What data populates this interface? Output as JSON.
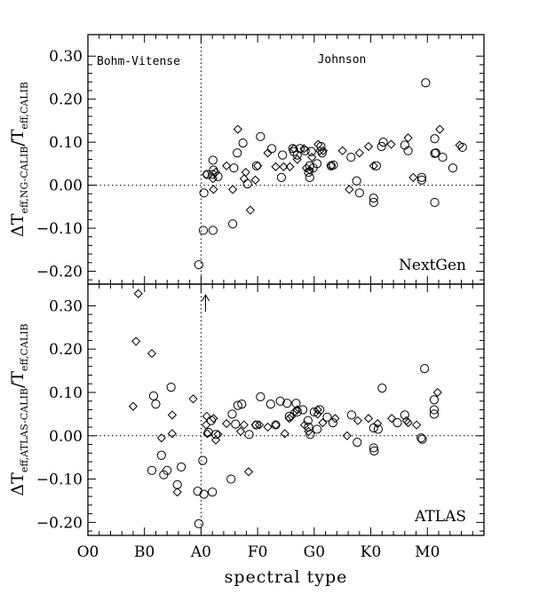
{
  "chart_data": {
    "type": "scatter",
    "xlabel": "spectral type",
    "x_tick_labels": [
      "O0",
      "B0",
      "A0",
      "F0",
      "G0",
      "K0",
      "M0"
    ],
    "x_tick_values": [
      0,
      10,
      20,
      30,
      40,
      50,
      60
    ],
    "xlim": [
      0,
      70
    ],
    "x_unit_note": "x = spectral class index: O0=0, B0=10, A0=20, F0=30, G0=40, K0=50, M0=60",
    "vertical_reference_x": 20,
    "horizontal_reference_y": 0,
    "region_labels": {
      "left": "Bohm-Vitense",
      "right": "Johnson"
    },
    "panels": [
      {
        "id": "nextgen",
        "panel_label": "NextGen",
        "ylabel_main": "ΔT",
        "ylabel_sub1": "eff,NG-CALIB",
        "ylabel_mid": "/T",
        "ylabel_sub2": "eff,CALIB",
        "ylim": [
          -0.23,
          0.35
        ],
        "y_ticks": [
          -0.2,
          -0.1,
          0.0,
          0.1,
          0.2,
          0.3
        ],
        "y_tick_labels": [
          "−0.20",
          "−0.10",
          "0.00",
          "0.10",
          "0.20",
          "0.30"
        ],
        "series": [
          {
            "marker": "circle",
            "points": [
              [
                19.6,
                -0.185
              ],
              [
                20.4,
                -0.105
              ],
              [
                20.5,
                -0.018
              ],
              [
                21.1,
                0.025
              ],
              [
                22.0,
                0.025
              ],
              [
                22.1,
                0.058
              ],
              [
                22.2,
                0.035
              ],
              [
                22.1,
                -0.105
              ],
              [
                23.0,
                0.02
              ],
              [
                25.6,
                -0.09
              ],
              [
                25.8,
                0.04
              ],
              [
                26.4,
                0.075
              ],
              [
                27.4,
                0.098
              ],
              [
                28.2,
                0.003
              ],
              [
                29.8,
                0.045
              ],
              [
                30.5,
                0.113
              ],
              [
                32.5,
                0.085
              ],
              [
                34.2,
                0.018
              ],
              [
                34.4,
                0.07
              ],
              [
                36.2,
                0.085
              ],
              [
                36.4,
                0.078
              ],
              [
                37.0,
                0.07
              ],
              [
                37.5,
                0.085
              ],
              [
                38.4,
                0.08
              ],
              [
                39.0,
                0.03
              ],
              [
                39.2,
                0.045
              ],
              [
                39.2,
                0.018
              ],
              [
                39.5,
                0.078
              ],
              [
                39.8,
                0.04
              ],
              [
                40.5,
                0.05
              ],
              [
                41.2,
                0.09
              ],
              [
                41.4,
                0.075
              ],
              [
                43.0,
                0.045
              ],
              [
                43.4,
                0.047
              ],
              [
                46.5,
                0.065
              ],
              [
                47.5,
                0.01
              ],
              [
                48.0,
                -0.018
              ],
              [
                50.5,
                -0.03
              ],
              [
                50.5,
                -0.04
              ],
              [
                51.0,
                0.045
              ],
              [
                51.9,
                0.09
              ],
              [
                52.2,
                0.1
              ],
              [
                56.0,
                0.093
              ],
              [
                56.6,
                0.08
              ],
              [
                59.0,
                0.018
              ],
              [
                59.0,
                0.012
              ],
              [
                59.7,
                0.238
              ],
              [
                61.3,
                0.108
              ],
              [
                61.3,
                0.074
              ],
              [
                61.5,
                0.075
              ],
              [
                61.3,
                -0.04
              ],
              [
                62.7,
                0.065
              ],
              [
                64.5,
                0.04
              ],
              [
                66.2,
                0.088
              ]
            ]
          },
          {
            "marker": "diamond",
            "points": [
              [
                20.9,
                0.025
              ],
              [
                22.1,
                0.015
              ],
              [
                22.2,
                -0.01
              ],
              [
                22.6,
                0.03
              ],
              [
                24.5,
                0.045
              ],
              [
                25.6,
                -0.01
              ],
              [
                26.5,
                0.13
              ],
              [
                27.6,
                0.015
              ],
              [
                27.9,
                0.03
              ],
              [
                28.7,
                -0.058
              ],
              [
                29.6,
                0.012
              ],
              [
                30.0,
                0.045
              ],
              [
                31.8,
                0.075
              ],
              [
                33.2,
                0.043
              ],
              [
                34.6,
                0.043
              ],
              [
                35.7,
                0.043
              ],
              [
                36.4,
                0.085
              ],
              [
                37.0,
                0.06
              ],
              [
                38.2,
                0.085
              ],
              [
                38.6,
                0.04
              ],
              [
                39.2,
                0.035
              ],
              [
                39.6,
                0.065
              ],
              [
                40.7,
                0.095
              ],
              [
                41.0,
                0.08
              ],
              [
                41.6,
                0.08
              ],
              [
                43.0,
                0.045
              ],
              [
                45.0,
                0.08
              ],
              [
                46.2,
                -0.01
              ],
              [
                48.0,
                0.075
              ],
              [
                49.6,
                0.09
              ],
              [
                50.5,
                0.045
              ],
              [
                53.6,
                0.095
              ],
              [
                56.6,
                0.11
              ],
              [
                57.5,
                0.018
              ],
              [
                62.2,
                0.13
              ],
              [
                65.7,
                0.093
              ]
            ]
          }
        ]
      },
      {
        "id": "atlas",
        "panel_label": "ATLAS",
        "ylabel_main": "ΔT",
        "ylabel_sub1": "eff,ATLAS-CALIB",
        "ylabel_mid": "/T",
        "ylabel_sub2": "eff,CALIB",
        "ylim": [
          -0.23,
          0.35
        ],
        "y_ticks": [
          -0.2,
          -0.1,
          0.0,
          0.1,
          0.2,
          0.3
        ],
        "y_tick_labels": [
          "−0.20",
          "−0.10",
          "0.00",
          "0.10",
          "0.20",
          "0.30"
        ],
        "upper_limit_arrow_x": 20.8,
        "series": [
          {
            "marker": "circle",
            "points": [
              [
                11.3,
                -0.08
              ],
              [
                11.6,
                0.092
              ],
              [
                12.0,
                0.073
              ],
              [
                13.0,
                -0.045
              ],
              [
                13.4,
                -0.09
              ],
              [
                14.0,
                -0.08
              ],
              [
                14.7,
                0.112
              ],
              [
                15.8,
                -0.113
              ],
              [
                16.5,
                -0.072
              ],
              [
                19.4,
                -0.128
              ],
              [
                19.6,
                -0.203
              ],
              [
                20.3,
                -0.057
              ],
              [
                20.5,
                -0.135
              ],
              [
                21.3,
                0.008
              ],
              [
                21.8,
                0.035
              ],
              [
                22.0,
                -0.13
              ],
              [
                22.6,
                0.003
              ],
              [
                25.3,
                -0.1
              ],
              [
                25.5,
                0.05
              ],
              [
                26.1,
                0.027
              ],
              [
                26.5,
                0.07
              ],
              [
                27.2,
                0.073
              ],
              [
                28.5,
                0.003
              ],
              [
                29.8,
                0.025
              ],
              [
                30.5,
                0.09
              ],
              [
                32.3,
                0.073
              ],
              [
                33.2,
                0.025
              ],
              [
                34.0,
                0.08
              ],
              [
                35.2,
                0.075
              ],
              [
                35.6,
                0.045
              ],
              [
                36.8,
                0.075
              ],
              [
                37.0,
                0.055
              ],
              [
                38.0,
                0.06
              ],
              [
                38.9,
                0.035
              ],
              [
                39.0,
                0.02
              ],
              [
                39.3,
                0.003
              ],
              [
                40.0,
                0.055
              ],
              [
                40.5,
                0.015
              ],
              [
                41.0,
                0.06
              ],
              [
                42.3,
                0.043
              ],
              [
                43.3,
                0.03
              ],
              [
                46.6,
                0.048
              ],
              [
                47.6,
                -0.015
              ],
              [
                50.5,
                0.018
              ],
              [
                50.5,
                -0.028
              ],
              [
                50.6,
                -0.035
              ],
              [
                51.3,
                0.015
              ],
              [
                52.0,
                0.11
              ],
              [
                54.7,
                0.03
              ],
              [
                56.0,
                0.048
              ],
              [
                58.9,
                -0.005
              ],
              [
                59.1,
                -0.008
              ],
              [
                59.5,
                0.155
              ],
              [
                61.2,
                0.083
              ],
              [
                61.2,
                0.06
              ],
              [
                61.2,
                0.05
              ]
            ]
          },
          {
            "marker": "diamond",
            "points": [
              [
                8.0,
                0.068
              ],
              [
                8.5,
                0.218
              ],
              [
                8.9,
                0.328
              ],
              [
                11.3,
                0.19
              ],
              [
                13.0,
                -0.005
              ],
              [
                14.9,
                0.048
              ],
              [
                14.9,
                0.005
              ],
              [
                15.8,
                -0.13
              ],
              [
                18.6,
                0.085
              ],
              [
                20.9,
                0.025
              ],
              [
                21.0,
                0.045
              ],
              [
                21.1,
                0.005
              ],
              [
                22.2,
                0.04
              ],
              [
                22.6,
                -0.01
              ],
              [
                23.0,
                0.003
              ],
              [
                24.5,
                0.028
              ],
              [
                27.0,
                0.01
              ],
              [
                27.6,
                0.025
              ],
              [
                28.4,
                -0.083
              ],
              [
                29.6,
                0.025
              ],
              [
                30.3,
                0.025
              ],
              [
                31.8,
                0.02
              ],
              [
                33.2,
                0.025
              ],
              [
                34.8,
                0.005
              ],
              [
                35.6,
                0.04
              ],
              [
                36.0,
                0.045
              ],
              [
                36.5,
                0.055
              ],
              [
                37.0,
                0.06
              ],
              [
                38.3,
                0.025
              ],
              [
                39.0,
                0.01
              ],
              [
                40.6,
                0.05
              ],
              [
                40.6,
                0.06
              ],
              [
                41.5,
                0.03
              ],
              [
                43.7,
                0.04
              ],
              [
                45.8,
                0.0
              ],
              [
                47.7,
                0.035
              ],
              [
                49.6,
                0.04
              ],
              [
                51.2,
                0.028
              ],
              [
                53.7,
                0.04
              ],
              [
                56.3,
                0.035
              ],
              [
                56.6,
                0.03
              ],
              [
                58.1,
                0.025
              ],
              [
                61.8,
                0.1
              ]
            ]
          }
        ]
      }
    ]
  }
}
